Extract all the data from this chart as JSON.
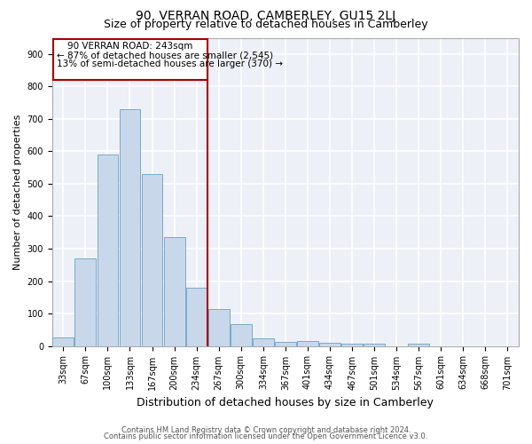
{
  "title1": "90, VERRAN ROAD, CAMBERLEY, GU15 2LJ",
  "title2": "Size of property relative to detached houses in Camberley",
  "xlabel": "Distribution of detached houses by size in Camberley",
  "ylabel": "Number of detached properties",
  "footnote1": "Contains HM Land Registry data © Crown copyright and database right 2024.",
  "footnote2": "Contains public sector information licensed under the Open Government Licence v3.0.",
  "annotation_line1": "90 VERRAN ROAD: 243sqm",
  "annotation_line2": "← 87% of detached houses are smaller (2,545)",
  "annotation_line3": "13% of semi-detached houses are larger (370) →",
  "bar_color": "#c8d8ea",
  "bar_edge_color": "#7aaac8",
  "vline_color": "#aa0000",
  "annotation_box_color": "#aa0000",
  "categories": [
    "33sqm",
    "67sqm",
    "100sqm",
    "133sqm",
    "167sqm",
    "200sqm",
    "234sqm",
    "267sqm",
    "300sqm",
    "334sqm",
    "367sqm",
    "401sqm",
    "434sqm",
    "467sqm",
    "501sqm",
    "534sqm",
    "567sqm",
    "601sqm",
    "634sqm",
    "668sqm",
    "701sqm"
  ],
  "values": [
    25,
    270,
    590,
    730,
    530,
    335,
    180,
    115,
    67,
    23,
    13,
    15,
    10,
    8,
    7,
    0,
    8,
    0,
    0,
    0,
    0
  ],
  "vline_x": 6.5,
  "ylim": [
    0,
    950
  ],
  "yticks": [
    0,
    100,
    200,
    300,
    400,
    500,
    600,
    700,
    800,
    900
  ],
  "background_color": "#edf0f7",
  "title1_fontsize": 10,
  "title2_fontsize": 9,
  "xlabel_fontsize": 9,
  "ylabel_fontsize": 8,
  "tick_fontsize": 7,
  "footnote_fontsize": 6,
  "annotation_fontsize": 7.5
}
